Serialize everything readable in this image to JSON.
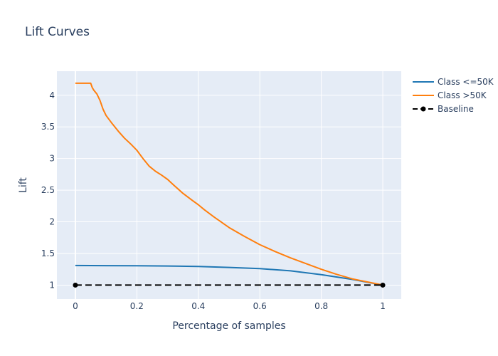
{
  "chart_data": {
    "type": "line",
    "title": "Lift Curves",
    "xlabel": "Percentage of samples",
    "ylabel": "Lift",
    "xlim": [
      -0.06,
      1.06
    ],
    "ylim": [
      0.78,
      4.38
    ],
    "xticks": [
      0,
      0.2,
      0.4,
      0.6,
      0.8,
      1
    ],
    "xtick_labels": [
      "0",
      "0.2",
      "0.4",
      "0.6",
      "0.8",
      "1"
    ],
    "yticks": [
      1,
      1.5,
      2,
      2.5,
      3,
      3.5,
      4
    ],
    "ytick_labels": [
      "1",
      "1.5",
      "2",
      "2.5",
      "3",
      "3.5",
      "4"
    ],
    "grid": true,
    "legend_position": "top-right",
    "series": [
      {
        "name": "Class <=50K",
        "color": "#1f77b4",
        "dash": "solid",
        "markers": false,
        "x": [
          0,
          0.1,
          0.2,
          0.3,
          0.4,
          0.5,
          0.6,
          0.7,
          0.8,
          0.9,
          1.0
        ],
        "y": [
          1.31,
          1.308,
          1.305,
          1.302,
          1.295,
          1.28,
          1.26,
          1.225,
          1.165,
          1.09,
          1.0
        ]
      },
      {
        "name": "Class >50K",
        "color": "#ff7f0e",
        "dash": "solid",
        "markers": false,
        "x": [
          0,
          0.05,
          0.055,
          0.06,
          0.07,
          0.08,
          0.09,
          0.1,
          0.12,
          0.14,
          0.16,
          0.18,
          0.2,
          0.22,
          0.24,
          0.26,
          0.28,
          0.3,
          0.32,
          0.35,
          0.38,
          0.4,
          0.42,
          0.45,
          0.5,
          0.55,
          0.6,
          0.65,
          0.7,
          0.75,
          0.8,
          0.85,
          0.9,
          0.95,
          1.0
        ],
        "y": [
          4.19,
          4.19,
          4.12,
          4.08,
          4.02,
          3.92,
          3.78,
          3.68,
          3.55,
          3.43,
          3.32,
          3.23,
          3.13,
          3.0,
          2.88,
          2.8,
          2.74,
          2.67,
          2.58,
          2.45,
          2.34,
          2.27,
          2.19,
          2.08,
          1.91,
          1.77,
          1.64,
          1.53,
          1.43,
          1.34,
          1.25,
          1.17,
          1.1,
          1.05,
          1.0
        ]
      },
      {
        "name": "Baseline",
        "color": "#000000",
        "dash": "dash",
        "markers": true,
        "x": [
          0,
          1
        ],
        "y": [
          1,
          1
        ]
      }
    ]
  }
}
